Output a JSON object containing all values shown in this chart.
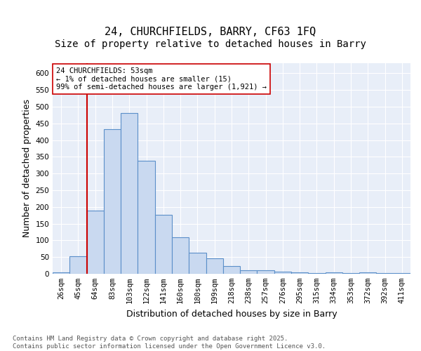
{
  "title_line1": "24, CHURCHFIELDS, BARRY, CF63 1FQ",
  "title_line2": "Size of property relative to detached houses in Barry",
  "xlabel": "Distribution of detached houses by size in Barry",
  "ylabel": "Number of detached properties",
  "bin_labels": [
    "26sqm",
    "45sqm",
    "64sqm",
    "83sqm",
    "103sqm",
    "122sqm",
    "141sqm",
    "160sqm",
    "180sqm",
    "199sqm",
    "218sqm",
    "238sqm",
    "257sqm",
    "276sqm",
    "295sqm",
    "315sqm",
    "334sqm",
    "353sqm",
    "372sqm",
    "392sqm",
    "411sqm"
  ],
  "bar_values": [
    5,
    52,
    190,
    433,
    480,
    338,
    177,
    110,
    62,
    46,
    23,
    10,
    10,
    7,
    5,
    3,
    4,
    2,
    4,
    2,
    3
  ],
  "bar_color": "#c9d9f0",
  "bar_edge_color": "#5b8fc9",
  "vline_position": 1.5,
  "vline_color": "#cc0000",
  "annotation_text": "24 CHURCHFIELDS: 53sqm\n← 1% of detached houses are smaller (15)\n99% of semi-detached houses are larger (1,921) →",
  "annotation_box_color": "#ffffff",
  "annotation_box_edge": "#cc0000",
  "ylim": [
    0,
    630
  ],
  "yticks": [
    0,
    50,
    100,
    150,
    200,
    250,
    300,
    350,
    400,
    450,
    500,
    550,
    600
  ],
  "bg_color": "#e8eef8",
  "footer_text": "Contains HM Land Registry data © Crown copyright and database right 2025.\nContains public sector information licensed under the Open Government Licence v3.0.",
  "grid_color": "#ffffff",
  "title_fontsize": 11,
  "subtitle_fontsize": 10,
  "label_fontsize": 9,
  "tick_fontsize": 7.5,
  "footer_fontsize": 6.5
}
